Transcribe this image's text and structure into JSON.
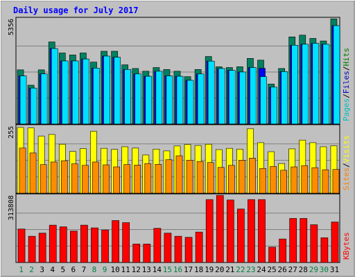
{
  "chart_data": {
    "type": "bar",
    "title": "Daily usage for July 2017",
    "categories": [
      "1",
      "2",
      "3",
      "4",
      "5",
      "6",
      "7",
      "8",
      "9",
      "10",
      "11",
      "12",
      "13",
      "14",
      "15",
      "16",
      "17",
      "18",
      "19",
      "20",
      "21",
      "22",
      "23",
      "24",
      "25",
      "26",
      "27",
      "28",
      "29",
      "30",
      "31"
    ],
    "weekend_days": [
      "1",
      "2",
      "8",
      "9",
      "15",
      "16",
      "22",
      "23",
      "29",
      "30"
    ],
    "panels": [
      {
        "id": "pages-files-hits",
        "max_label": "5356",
        "ymax": 5356,
        "legend": [
          {
            "text": "Pages",
            "color": "#00c0c0"
          },
          {
            "text": "Files",
            "color": "#0000c0"
          },
          {
            "text": "Hits",
            "color": "#007f00"
          }
        ],
        "series": [
          {
            "name": "Hits",
            "color": "#008060",
            "values": [
              2790,
              2000,
              2790,
              4230,
              3660,
              3560,
              3660,
              3190,
              3750,
              3750,
              3050,
              2860,
              2720,
              2910,
              2810,
              2720,
              2440,
              2810,
              3480,
              2950,
              2910,
              2950,
              3380,
              3290,
              2060,
              2860,
              4490,
              4580,
              4410,
              4280,
              5420
            ]
          },
          {
            "name": "Files",
            "color": "#0000ff",
            "values": [
              2480,
              1850,
              2580,
              3890,
              3250,
              3250,
              3350,
              2880,
              3500,
              3440,
              2810,
              2580,
              2460,
              2720,
              2480,
              2460,
              2250,
              2580,
              3240,
              2860,
              2760,
              2680,
              2910,
              2870,
              1900,
              2700,
              4060,
              4110,
              4160,
              4110,
              5070
            ]
          },
          {
            "name": "Pages",
            "color": "#00e0ff",
            "values": [
              2480,
              1850,
              2580,
              3890,
              3250,
              3250,
              3350,
              2880,
              3500,
              3440,
              2810,
              2580,
              2460,
              2720,
              2480,
              2460,
              2250,
              2580,
              3240,
              2860,
              2760,
              2680,
              2910,
              2440,
              1900,
              2700,
              4060,
              4110,
              4160,
              4110,
              5070
            ]
          }
        ]
      },
      {
        "id": "visits-sites",
        "max_label": "255",
        "ymax": 255,
        "legend": [
          {
            "text": "Sites",
            "color": "#ff8000"
          },
          {
            "text": "Visits",
            "color": "#ffff00"
          }
        ],
        "series": [
          {
            "name": "Visits",
            "color": "#ffff00",
            "values": [
              255,
              253,
              221,
              228,
              190,
              162,
              173,
              240,
              174,
              170,
              180,
              175,
              148,
              171,
              164,
              183,
              189,
              185,
              190,
              169,
              174,
              171,
              250,
              196,
              161,
              115,
              172,
              206,
              196,
              180,
              184
            ]
          },
          {
            "name": "Sites",
            "color": "#ff8c00",
            "values": [
              175,
              156,
              111,
              121,
              126,
              114,
              108,
              121,
              110,
              102,
              111,
              109,
              115,
              112,
              130,
              145,
              128,
              123,
              119,
              100,
              108,
              128,
              136,
              96,
              104,
              89,
              102,
              107,
              99,
              91,
              92
            ]
          }
        ]
      },
      {
        "id": "kbytes",
        "max_label": "313808",
        "ymax": 313808,
        "legend": [
          {
            "text": "KBytes",
            "color": "#ff0000"
          }
        ],
        "series": [
          {
            "name": "KBytes",
            "color": "#ff0000",
            "values": [
              159500,
              125000,
              140000,
              178000,
              170000,
              150000,
              178000,
              165000,
              155000,
              200000,
              190000,
              88000,
              88000,
              163000,
              140000,
              125000,
              120000,
              145000,
              300000,
              320000,
              298000,
              255000,
              300000,
              300000,
              73000,
              112000,
              210000,
              210000,
              180000,
              118000,
              193000
            ]
          }
        ]
      }
    ]
  },
  "colors": {
    "background": "#c0c0c0",
    "plot_background": "#c0c0c0",
    "border": "#000000",
    "title": "#0000ff",
    "weekday_label": "#000000",
    "weekend_label": "#008040",
    "grid": "#808080"
  }
}
